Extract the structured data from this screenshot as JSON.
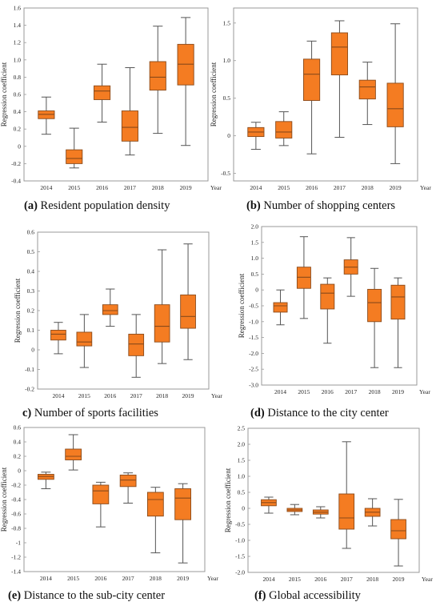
{
  "chart_data": [
    {
      "type": "boxplot",
      "caption_letter": "(a)",
      "caption_text": "Resident population density",
      "ylabel": "Regression coefficient",
      "xunit": "Year",
      "categories": [
        "2014",
        "2015",
        "2016",
        "2017",
        "2018",
        "2019"
      ],
      "ylim": [
        -0.4,
        1.6
      ],
      "yticks": [
        "-0.4",
        "-0.2",
        "0",
        "0.2",
        "0.4",
        "0.6",
        "0.8",
        "1.0",
        "1.2",
        "1.4",
        "1.6"
      ],
      "boxes": [
        {
          "min": 0.14,
          "q1": 0.32,
          "median": 0.37,
          "q3": 0.41,
          "max": 0.57
        },
        {
          "min": -0.25,
          "q1": -0.2,
          "median": -0.14,
          "q3": -0.04,
          "max": 0.21
        },
        {
          "min": 0.28,
          "q1": 0.54,
          "median": 0.64,
          "q3": 0.7,
          "max": 0.95
        },
        {
          "min": -0.1,
          "q1": 0.06,
          "median": 0.22,
          "q3": 0.41,
          "max": 0.91
        },
        {
          "min": 0.15,
          "q1": 0.65,
          "median": 0.8,
          "q3": 0.98,
          "max": 1.39
        },
        {
          "min": 0.01,
          "q1": 0.71,
          "median": 0.95,
          "q3": 1.18,
          "max": 1.49
        }
      ]
    },
    {
      "type": "boxplot",
      "caption_letter": "(b)",
      "caption_text": "Number of shopping centers",
      "ylabel": "Regression coefficient",
      "xunit": "Year",
      "categories": [
        "2014",
        "2015",
        "2016",
        "2017",
        "2018",
        "2019"
      ],
      "ylim": [
        -0.6,
        1.7
      ],
      "yticks": [
        "-0.5",
        "0",
        "0.5",
        "1.0",
        "1.5"
      ],
      "boxes": [
        {
          "min": -0.18,
          "q1": -0.01,
          "median": 0.05,
          "q3": 0.11,
          "max": 0.18
        },
        {
          "min": -0.13,
          "q1": -0.03,
          "median": 0.05,
          "q3": 0.19,
          "max": 0.32
        },
        {
          "min": -0.24,
          "q1": 0.47,
          "median": 0.82,
          "q3": 1.02,
          "max": 1.26
        },
        {
          "min": -0.02,
          "q1": 0.81,
          "median": 1.18,
          "q3": 1.37,
          "max": 1.53
        },
        {
          "min": 0.15,
          "q1": 0.49,
          "median": 0.65,
          "q3": 0.74,
          "max": 0.98
        },
        {
          "min": -0.37,
          "q1": 0.12,
          "median": 0.36,
          "q3": 0.7,
          "max": 1.49
        }
      ]
    },
    {
      "type": "boxplot",
      "caption_letter": "c)",
      "caption_text": "Number of sports facilities",
      "ylabel": "Regression coefficient",
      "xunit": "Year",
      "categories": [
        "2014",
        "2015",
        "2016",
        "2017",
        "2018",
        "2019"
      ],
      "ylim": [
        -0.2,
        0.6
      ],
      "yticks": [
        "-0.2",
        "-0.1",
        "0",
        "0.1",
        "0.2",
        "0.3",
        "0.4",
        "0.5",
        "0.6"
      ],
      "boxes": [
        {
          "min": -0.02,
          "q1": 0.05,
          "median": 0.08,
          "q3": 0.1,
          "max": 0.14
        },
        {
          "min": -0.09,
          "q1": 0.02,
          "median": 0.04,
          "q3": 0.09,
          "max": 0.18
        },
        {
          "min": 0.12,
          "q1": 0.18,
          "median": 0.2,
          "q3": 0.23,
          "max": 0.31
        },
        {
          "min": -0.14,
          "q1": -0.03,
          "median": 0.03,
          "q3": 0.08,
          "max": 0.18
        },
        {
          "min": -0.07,
          "q1": 0.04,
          "median": 0.12,
          "q3": 0.23,
          "max": 0.51
        },
        {
          "min": -0.05,
          "q1": 0.11,
          "median": 0.17,
          "q3": 0.28,
          "max": 0.54
        }
      ]
    },
    {
      "type": "boxplot",
      "caption_letter": "(d)",
      "caption_text": "Distance to the city center",
      "ylabel": "Regression coefficient",
      "xunit": "Year",
      "categories": [
        "2014",
        "2015",
        "2016",
        "2017",
        "2018",
        "2019"
      ],
      "ylim": [
        -3.0,
        2.0
      ],
      "yticks": [
        "-3.0",
        "-2.5",
        "-2.0",
        "-1.5",
        "-1.0",
        "-0.5",
        "0",
        "0.5",
        "1.0",
        "1.5",
        "2.0"
      ],
      "boxes": [
        {
          "min": -1.1,
          "q1": -0.7,
          "median": -0.5,
          "q3": -0.4,
          "max": 0.0
        },
        {
          "min": -0.9,
          "q1": 0.05,
          "median": 0.4,
          "q3": 0.72,
          "max": 1.68
        },
        {
          "min": -1.68,
          "q1": -0.6,
          "median": -0.1,
          "q3": 0.18,
          "max": 0.38
        },
        {
          "min": -0.2,
          "q1": 0.5,
          "median": 0.72,
          "q3": 0.95,
          "max": 1.65
        },
        {
          "min": -2.45,
          "q1": -1.0,
          "median": -0.4,
          "q3": 0.02,
          "max": 0.68
        },
        {
          "min": -2.45,
          "q1": -0.92,
          "median": -0.22,
          "q3": 0.15,
          "max": 0.38
        }
      ]
    },
    {
      "type": "boxplot",
      "caption_letter": "(e)",
      "caption_text": "Distance to the sub-city center",
      "ylabel": "Regression coefficient",
      "xunit": "Year",
      "categories": [
        "2014",
        "2015",
        "2016",
        "2017",
        "2018",
        "2019"
      ],
      "ylim": [
        -1.4,
        0.6
      ],
      "yticks": [
        "-1.4",
        "-1.2",
        "-1",
        "-0.8",
        "-0.6",
        "-0.4",
        "-0.2",
        "0",
        "0.2",
        "0.4",
        "0.6"
      ],
      "boxes": [
        {
          "min": -0.25,
          "q1": -0.12,
          "median": -0.08,
          "q3": -0.05,
          "max": -0.02
        },
        {
          "min": 0.01,
          "q1": 0.15,
          "median": 0.2,
          "q3": 0.3,
          "max": 0.5
        },
        {
          "min": -0.78,
          "q1": -0.46,
          "median": -0.28,
          "q3": -0.2,
          "max": -0.16
        },
        {
          "min": -0.45,
          "q1": -0.22,
          "median": -0.13,
          "q3": -0.06,
          "max": -0.03
        },
        {
          "min": -1.14,
          "q1": -0.63,
          "median": -0.4,
          "q3": -0.3,
          "max": -0.23
        },
        {
          "min": -1.28,
          "q1": -0.68,
          "median": -0.38,
          "q3": -0.25,
          "max": -0.18
        }
      ]
    },
    {
      "type": "boxplot",
      "caption_letter": "(f)",
      "caption_text": "Global accessibility",
      "ylabel": "Regression coefficient",
      "xunit": "Year",
      "categories": [
        "2014",
        "2015",
        "2016",
        "2017",
        "2018",
        "2019"
      ],
      "ylim": [
        -2.0,
        2.5
      ],
      "yticks": [
        "-2.0",
        "-1.5",
        "-1.0",
        "-0.5",
        "0",
        "0.5",
        "1.0",
        "1.5",
        "2.0",
        "2.5"
      ],
      "boxes": [
        {
          "min": -0.15,
          "q1": 0.08,
          "median": 0.18,
          "q3": 0.27,
          "max": 0.35
        },
        {
          "min": -0.2,
          "q1": -0.1,
          "median": -0.05,
          "q3": 0.0,
          "max": 0.12
        },
        {
          "min": -0.3,
          "q1": -0.18,
          "median": -0.12,
          "q3": -0.05,
          "max": 0.05
        },
        {
          "min": -1.25,
          "q1": -0.65,
          "median": -0.3,
          "q3": 0.45,
          "max": 2.08
        },
        {
          "min": -0.55,
          "q1": -0.25,
          "median": -0.12,
          "q3": 0.0,
          "max": 0.3
        },
        {
          "min": -1.8,
          "q1": -0.95,
          "median": -0.7,
          "q3": -0.35,
          "max": 0.28
        }
      ]
    }
  ],
  "colors": {
    "box_fill": "#f47c22",
    "box_stroke": "#8a4a1a",
    "line": "#555555",
    "frame": "#999999"
  }
}
